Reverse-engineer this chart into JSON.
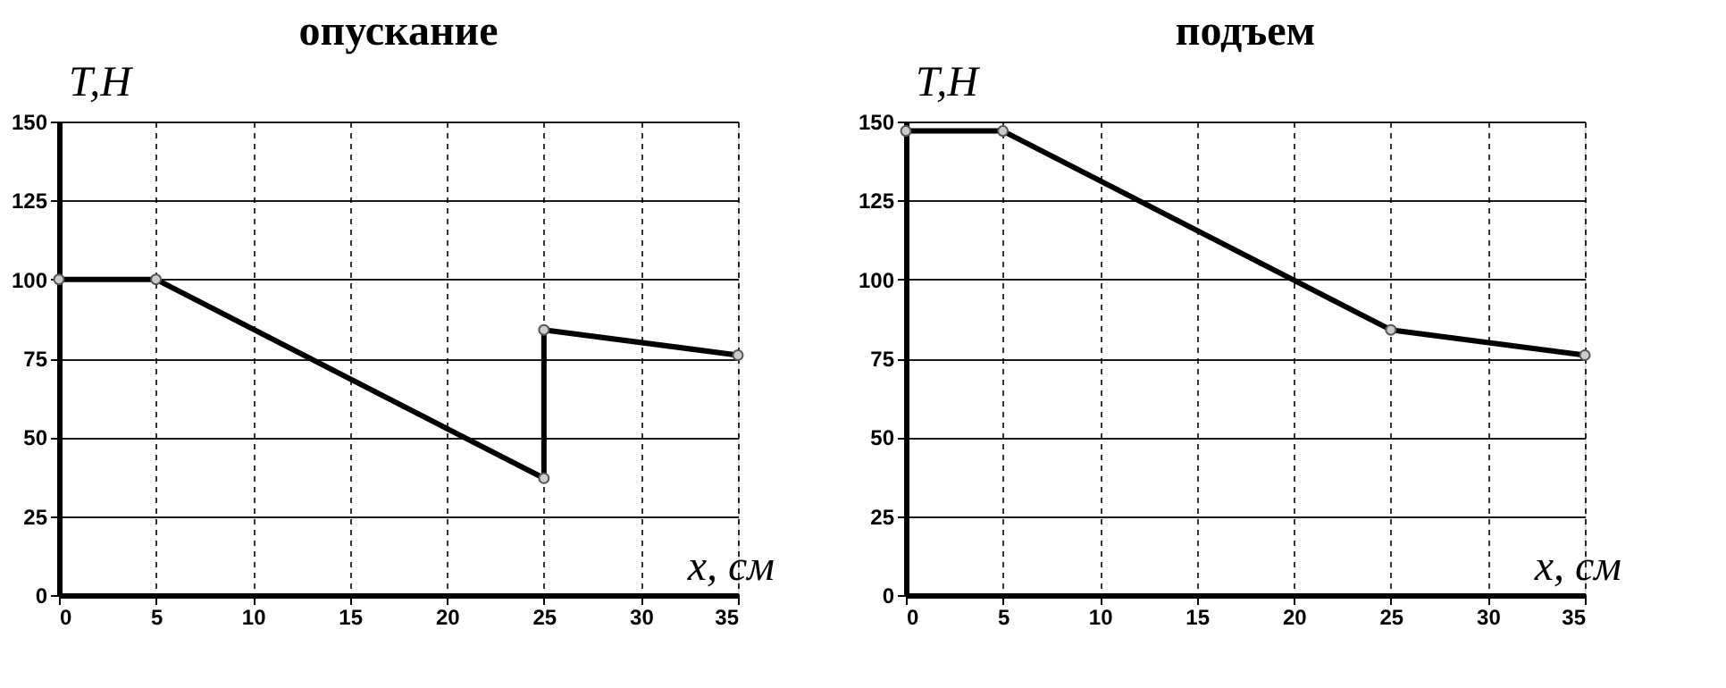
{
  "chart_data": [
    {
      "type": "line",
      "title": "опускание",
      "xlabel": "x, см",
      "ylabel": "T,Н",
      "series": [
        {
          "color": "#000000",
          "x": [
            0,
            5,
            25,
            25,
            35
          ],
          "values": [
            100,
            100,
            37,
            84,
            76
          ]
        }
      ],
      "xlim": [
        0,
        35
      ],
      "xticks": [
        0,
        5,
        10,
        15,
        20,
        25,
        30,
        35
      ],
      "ylim": [
        0,
        150
      ],
      "yticks": [
        0,
        25,
        50,
        75,
        100,
        125,
        150
      ],
      "grid": true,
      "marker": "circle",
      "line_style": "solid"
    },
    {
      "type": "line",
      "title": "подъем",
      "xlabel": "x, см",
      "ylabel": "T,Н",
      "series": [
        {
          "color": "#000000",
          "x": [
            0,
            5,
            25,
            35
          ],
          "values": [
            147,
            147,
            84,
            76
          ]
        }
      ],
      "xlim": [
        0,
        35
      ],
      "xticks": [
        0,
        5,
        10,
        15,
        20,
        25,
        30,
        35
      ],
      "ylim": [
        0,
        150
      ],
      "yticks": [
        0,
        25,
        50,
        75,
        100,
        125,
        150
      ],
      "grid": true,
      "marker": "circle",
      "line_style": "solid"
    }
  ]
}
